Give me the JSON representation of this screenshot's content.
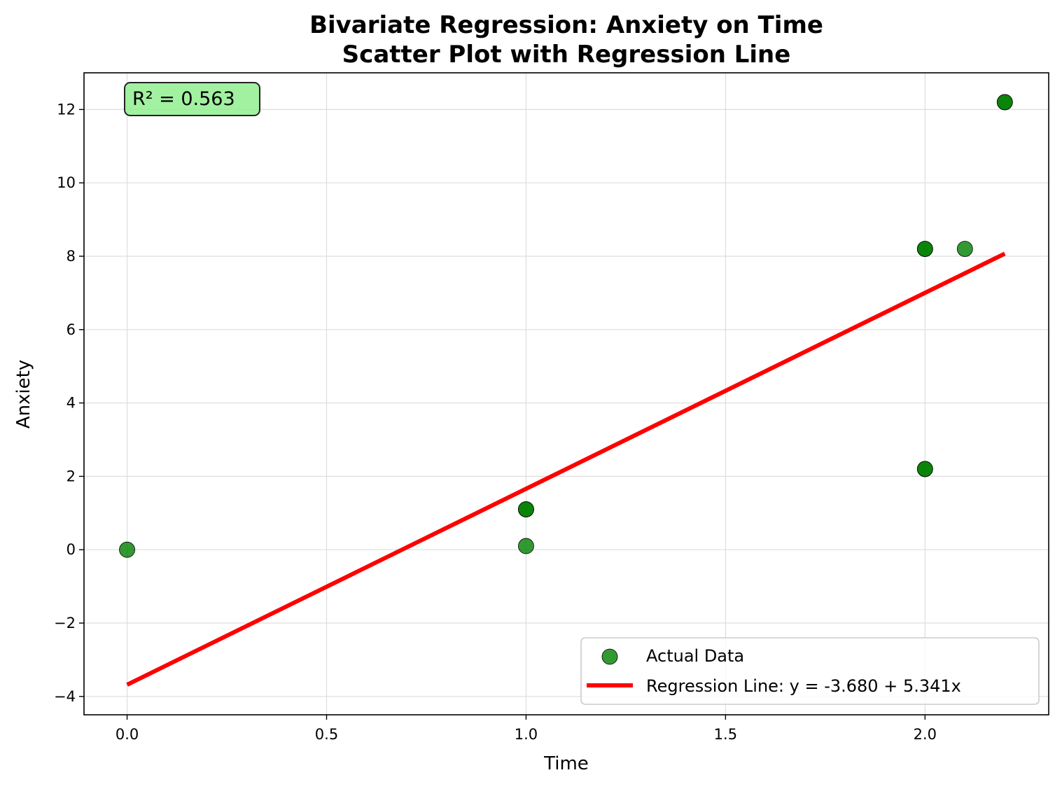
{
  "chart_data": {
    "type": "scatter",
    "title_line1": "Bivariate Regression: Anxiety on Time",
    "title_line2": "Scatter Plot with Regression Line",
    "xlabel": "Time",
    "ylabel": "Anxiety",
    "xlim": [
      -0.108,
      2.31
    ],
    "ylim": [
      -4.5,
      13.0
    ],
    "xticks": [
      0.0,
      0.5,
      1.0,
      1.5,
      2.0
    ],
    "xtick_labels": [
      "0.0",
      "0.5",
      "1.0",
      "1.5",
      "2.0"
    ],
    "yticks": [
      -4,
      -2,
      0,
      2,
      4,
      6,
      8,
      10,
      12
    ],
    "ytick_labels": [
      "−4",
      "−2",
      "0",
      "2",
      "4",
      "6",
      "8",
      "10",
      "12"
    ],
    "grid": true,
    "series": [
      {
        "name": "Actual Data",
        "kind": "scatter",
        "color": "#008000",
        "points": [
          {
            "x": 0.0,
            "y": 0.0
          },
          {
            "x": 1.0,
            "y": 0.1
          },
          {
            "x": 1.0,
            "y": 1.1
          },
          {
            "x": 1.0,
            "y": 1.1
          },
          {
            "x": 2.0,
            "y": 2.2
          },
          {
            "x": 2.0,
            "y": 2.2
          },
          {
            "x": 2.0,
            "y": 8.2
          },
          {
            "x": 2.0,
            "y": 8.2
          },
          {
            "x": 2.1,
            "y": 8.2
          },
          {
            "x": 2.2,
            "y": 12.2
          },
          {
            "x": 2.2,
            "y": 12.2
          }
        ]
      },
      {
        "name": "Regression Line: y = -3.680 + 5.341x",
        "kind": "line",
        "color": "#ff0000",
        "intercept": -3.68,
        "slope": 5.341,
        "x_range": [
          0.0,
          2.2
        ]
      }
    ],
    "legend_position": "lower-right",
    "annotation": {
      "text": "R² = 0.563",
      "position": "top-left",
      "box_color": "#90ee90"
    }
  }
}
